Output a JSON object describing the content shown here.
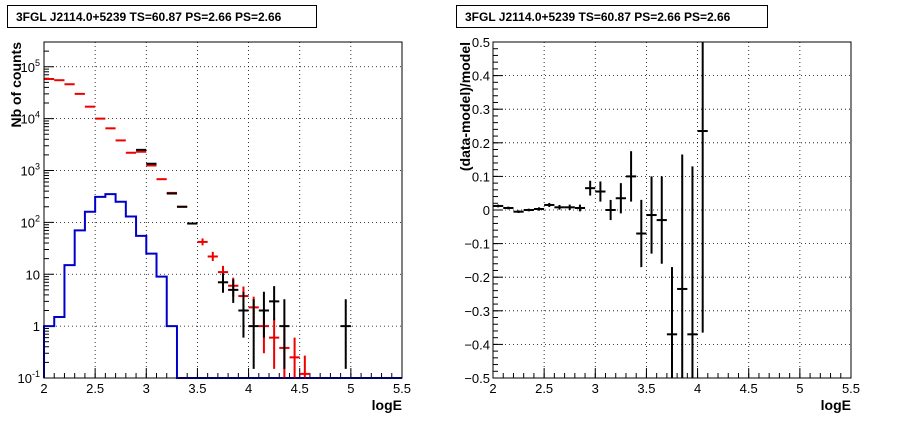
{
  "chart_data": [
    {
      "type": "histogram",
      "title": "3FGL J2114.0+5239 TS=60.87 PS=2.66 PS=2.66",
      "xlabel": "logE",
      "ylabel": "Nb of counts",
      "xlim": [
        2,
        5.5
      ],
      "ylim": [
        0.1,
        300000
      ],
      "yscale": "log",
      "grid": true,
      "x_ticks": [
        "2",
        "2.5",
        "3",
        "3.5",
        "4",
        "4.5",
        "5",
        "5.5"
      ],
      "y_ticks": [
        "10^-1",
        "1",
        "10",
        "10^2",
        "10^3",
        "10^4",
        "10^5"
      ],
      "series": [
        {
          "name": "",
          "style": "red-cross",
          "color": "#ee0000",
          "x": [
            2.05,
            2.15,
            2.25,
            2.35,
            2.45,
            2.55,
            2.65,
            2.75,
            2.85,
            2.95,
            3.05,
            3.15,
            3.25,
            3.35,
            3.45,
            3.55,
            3.65,
            3.75,
            3.85,
            3.95,
            4.05,
            4.15,
            4.25,
            4.35,
            4.45,
            4.55
          ],
          "y": [
            58000,
            55000,
            46000,
            30000,
            17000,
            10000,
            6500,
            3800,
            2200,
            2300,
            1250,
            680,
            370,
            200,
            95,
            42,
            22,
            11,
            6,
            3.8,
            2.3,
            1,
            0.6,
            0.38,
            0.25,
            0.12
          ],
          "yerr_low": [
            0,
            0,
            0,
            0,
            0,
            0,
            0,
            0,
            0,
            0,
            0,
            0,
            0,
            0,
            0,
            6,
            4,
            3,
            2.3,
            1.7,
            1.2,
            0.7,
            0.45,
            0.3,
            0.2,
            0.1
          ],
          "yerr_high": [
            0,
            0,
            0,
            0,
            0,
            0,
            0,
            0,
            0,
            0,
            0,
            0,
            0,
            0,
            0,
            7,
            5,
            3.5,
            2.6,
            2,
            1.4,
            1,
            0.8,
            0.5,
            0.35,
            0.15
          ]
        },
        {
          "name": "",
          "style": "black-cross",
          "color": "#000000",
          "x": [
            2.95,
            3.05,
            3.25,
            3.35,
            3.45,
            3.75,
            3.85,
            3.95,
            4.05,
            4.15,
            4.25,
            4.35,
            4.95
          ],
          "y": [
            2500,
            1350,
            360,
            200,
            95,
            7,
            5,
            2,
            1,
            2,
            3,
            1,
            1
          ],
          "yerr_low": [
            0,
            0,
            0,
            0,
            0,
            2.6,
            2.2,
            1.4,
            0.85,
            1.4,
            1.7,
            0.85,
            0.85
          ],
          "yerr_high": [
            0,
            0,
            0,
            0,
            0,
            3.5,
            3,
            2.6,
            2.3,
            2.6,
            2.9,
            2.3,
            2.3
          ]
        },
        {
          "name": "",
          "style": "blue-step",
          "color": "#0000cc",
          "bin_edges": [
            2.0,
            2.1,
            2.2,
            2.3,
            2.4,
            2.5,
            2.6,
            2.7,
            2.8,
            2.9,
            3.0,
            3.1,
            3.2,
            3.3,
            3.4,
            3.5,
            3.6,
            3.7,
            3.8,
            3.9,
            4.0,
            4.1,
            4.2,
            4.3,
            4.4,
            4.5,
            4.6,
            4.7,
            4.8,
            4.9,
            5.0,
            5.1,
            5.2,
            5.3,
            5.4,
            5.5
          ],
          "values": [
            1,
            1.5,
            15,
            70,
            160,
            310,
            350,
            250,
            130,
            55,
            25,
            9,
            1,
            0.1,
            0.1,
            0.1,
            0.1,
            0.1,
            0.1,
            0.1,
            0.1,
            0.1,
            0.1,
            0.1,
            0.1,
            0.1,
            0.1,
            0.1,
            0.1,
            0.1,
            0.1,
            0.1,
            0.1,
            0.1,
            0.1
          ]
        }
      ]
    },
    {
      "type": "scatter",
      "title": "3FGL J2114.0+5239 TS=60.87 PS=2.66 PS=2.66",
      "xlabel": "logE",
      "ylabel": "(data-model)/model",
      "xlim": [
        2,
        5.5
      ],
      "ylim": [
        -0.5,
        0.5
      ],
      "grid": true,
      "x_ticks": [
        "2",
        "2.5",
        "3",
        "3.5",
        "4",
        "4.5",
        "5",
        "5.5"
      ],
      "y_ticks": [
        "-0.5",
        "-0.4",
        "-0.3",
        "-0.2",
        "-0.1",
        "0",
        "0.1",
        "0.2",
        "0.3",
        "0.4",
        "0.5"
      ],
      "series": [
        {
          "name": "",
          "color": "#000000",
          "x": [
            2.05,
            2.15,
            2.25,
            2.35,
            2.45,
            2.55,
            2.65,
            2.75,
            2.85,
            2.95,
            3.05,
            3.15,
            3.25,
            3.35,
            3.45,
            3.55,
            3.65,
            3.75,
            3.85,
            3.95,
            4.05
          ],
          "y": [
            0.012,
            0.006,
            -0.005,
            0.0,
            0.003,
            0.015,
            0.008,
            0.008,
            0.006,
            0.065,
            0.055,
            0.0,
            0.035,
            0.1,
            -0.07,
            -0.015,
            -0.03,
            -0.37,
            -0.235,
            -0.37,
            0.235
          ],
          "yerr": [
            0.004,
            0.004,
            0.004,
            0.004,
            0.005,
            0.006,
            0.007,
            0.008,
            0.01,
            0.022,
            0.03,
            0.03,
            0.045,
            0.075,
            0.1,
            0.115,
            0.13,
            0.2,
            0.4,
            0.5,
            0.6
          ]
        }
      ]
    }
  ]
}
